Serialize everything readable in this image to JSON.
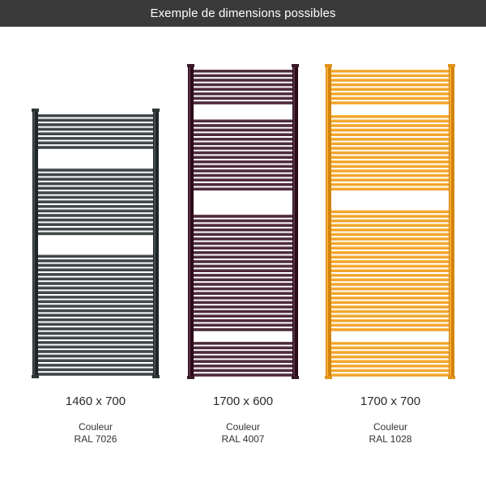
{
  "header": {
    "title": "Exemple de dimensions possibles"
  },
  "products": [
    {
      "dimensions": "1460 x 700",
      "color_title": "Couleur",
      "color_code": "RAL 7026",
      "color_hex": "#3d4446"
    },
    {
      "dimensions": "1700 x 600",
      "color_title": "Couleur",
      "color_code": "RAL 4007",
      "color_hex": "#4a2838"
    },
    {
      "dimensions": "1700 x 700",
      "color_title": "Couleur",
      "color_code": "RAL 1028",
      "color_hex": "#f0a22b"
    }
  ],
  "colors": {
    "header_bg": "#3a3a3a",
    "header_text": "#ffffff",
    "background": "#ffffff"
  }
}
